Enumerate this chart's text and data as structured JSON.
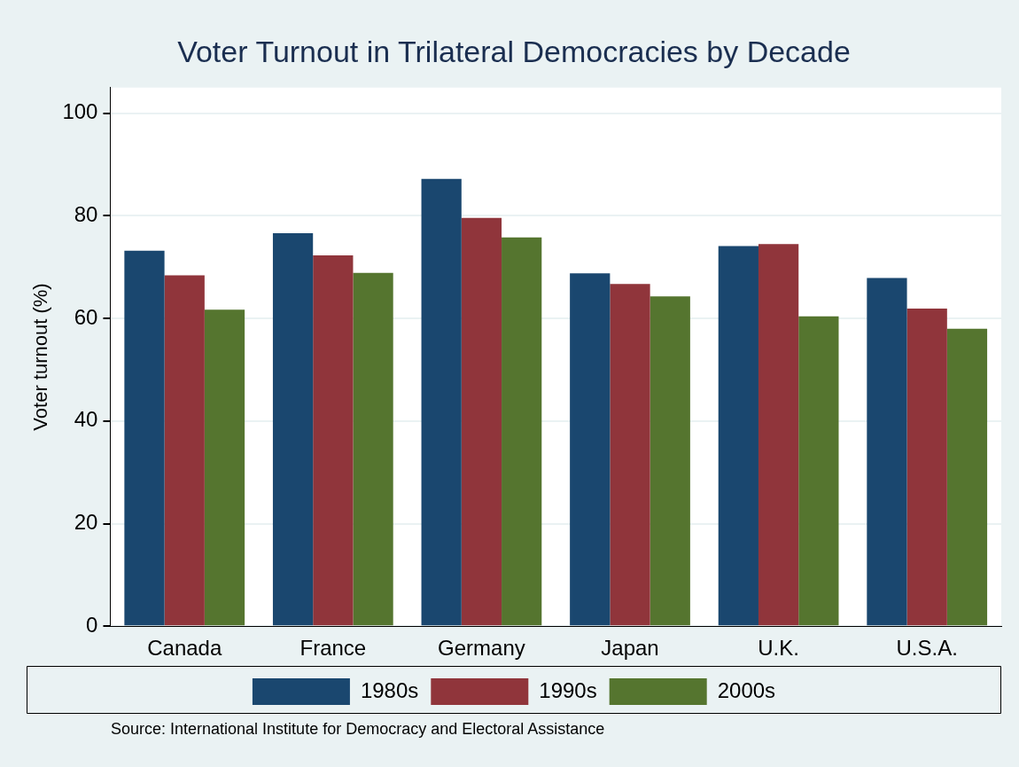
{
  "chart_data": {
    "type": "bar",
    "title": "Voter Turnout in Trilateral Democracies by Decade",
    "ylabel": "Voter turnout (%)",
    "categories": [
      "Canada",
      "France",
      "Germany",
      "Japan",
      "U.K.",
      "U.S.A."
    ],
    "series": [
      {
        "name": "1980s",
        "color": "#1a476f",
        "values": [
          73.2,
          76.6,
          87.2,
          68.8,
          74.1,
          67.9
        ]
      },
      {
        "name": "1990s",
        "color": "#90353b",
        "values": [
          68.4,
          72.3,
          79.6,
          66.7,
          74.5,
          61.9
        ]
      },
      {
        "name": "2000s",
        "color": "#55752f",
        "values": [
          61.7,
          68.9,
          75.8,
          64.3,
          60.4,
          58.0
        ]
      }
    ],
    "ylim": [
      0,
      105
    ],
    "yticks": [
      0,
      20,
      40,
      60,
      80,
      100
    ],
    "grid": "y",
    "legend": "bottom",
    "annotations": [
      "Source: International Institute for Democracy and Electoral Assistance"
    ]
  }
}
